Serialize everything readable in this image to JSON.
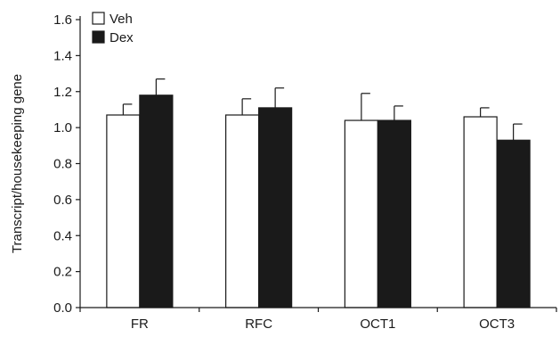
{
  "chart_data": {
    "type": "bar",
    "ylabel": "Transcript/housekeeping gene",
    "xlabel": "",
    "ylim": [
      0,
      1.6
    ],
    "yticks": [
      "0.0",
      "0.2",
      "0.4",
      "0.6",
      "0.8",
      "1.0",
      "1.2",
      "1.4",
      "1.6"
    ],
    "categories": [
      "FR",
      "RFC",
      "OCT1",
      "OCT3"
    ],
    "series": [
      {
        "name": "Veh",
        "color": "#ffffff",
        "values": [
          1.07,
          1.07,
          1.04,
          1.06
        ],
        "errors": [
          0.06,
          0.09,
          0.15,
          0.05
        ]
      },
      {
        "name": "Dex",
        "color": "#1a1a1a",
        "values": [
          1.18,
          1.11,
          1.04,
          0.93
        ],
        "errors": [
          0.09,
          0.11,
          0.08,
          0.09
        ]
      }
    ],
    "legend_position": "top-left",
    "grid": false
  }
}
